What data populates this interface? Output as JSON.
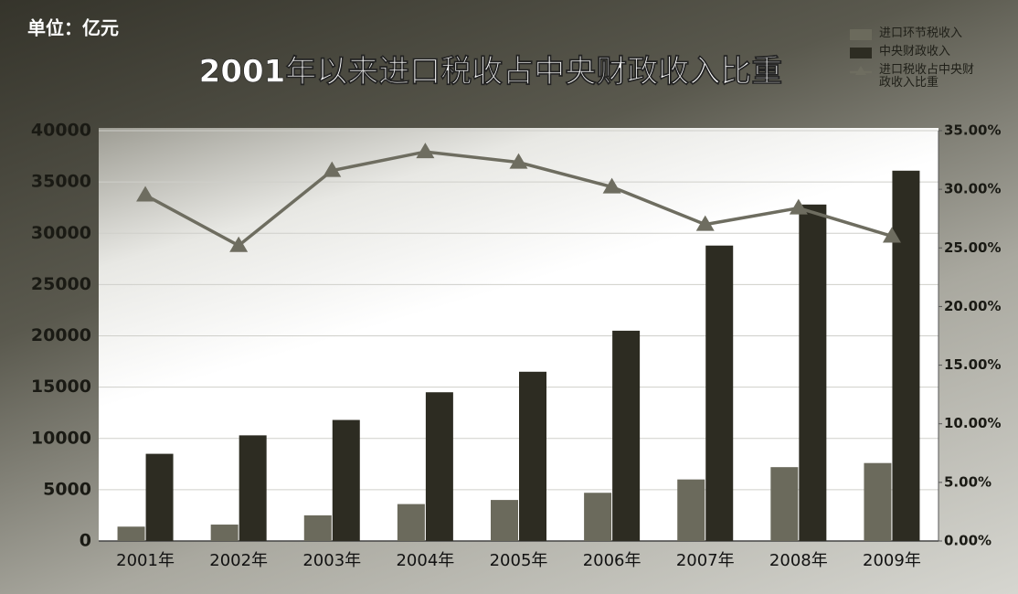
{
  "chart_data": {
    "type": "bar",
    "unit_label": "单位：亿元",
    "title": "2001年以来进口税收占中央财政收入比重",
    "categories": [
      "2001年",
      "2002年",
      "2003年",
      "2004年",
      "2005年",
      "2006年",
      "2007年",
      "2008年",
      "2009年"
    ],
    "series": [
      {
        "name": "进口环节税收入",
        "type": "bar",
        "color": "#6b6a5c",
        "values": [
          1400,
          1600,
          2500,
          3600,
          4000,
          4700,
          6000,
          7200,
          7600
        ]
      },
      {
        "name": "中央财政收入",
        "type": "bar",
        "color": "#2d2c22",
        "values": [
          8500,
          10300,
          11800,
          14500,
          16500,
          20500,
          28800,
          32800,
          36100
        ]
      },
      {
        "name": "进口税收占中央财政收入比重",
        "type": "line",
        "axis": "y2",
        "color": "#6e6d60",
        "values": [
          29.5,
          25.2,
          31.6,
          33.2,
          32.3,
          30.2,
          27.0,
          28.4,
          26.0
        ]
      }
    ],
    "ylim": [
      0,
      40000
    ],
    "yticks": [
      0,
      5000,
      10000,
      15000,
      20000,
      25000,
      30000,
      35000,
      40000
    ],
    "y2lim": [
      0,
      35
    ],
    "y2ticks": [
      {
        "value": 0,
        "label": "0.00%"
      },
      {
        "value": 5,
        "label": "5.00%"
      },
      {
        "value": 10,
        "label": "10.00%"
      },
      {
        "value": 15,
        "label": "15.00%"
      },
      {
        "value": 20,
        "label": "20.00%"
      },
      {
        "value": 25,
        "label": "25.00%"
      },
      {
        "value": 30,
        "label": "30.00%"
      },
      {
        "value": 35,
        "label": "35.00%"
      }
    ],
    "grid": true,
    "legend": "top-right"
  }
}
